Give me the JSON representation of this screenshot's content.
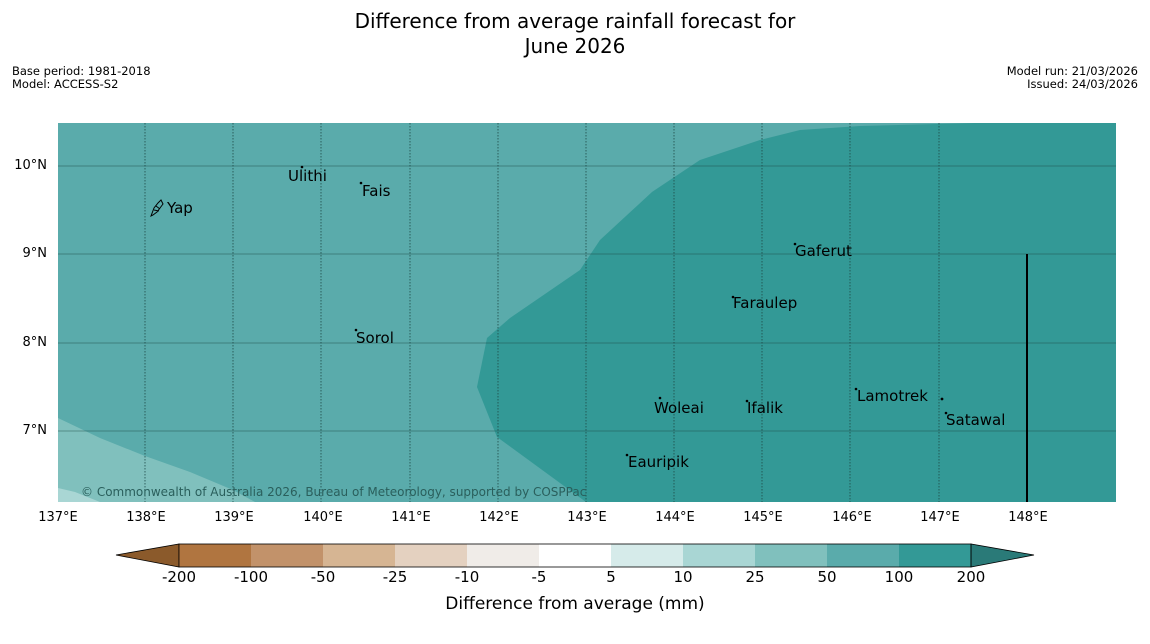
{
  "title_line1": "Difference from average rainfall forecast for",
  "title_line2": "June 2026",
  "meta_left": {
    "line1": "Base period: 1981-2018",
    "line2": "Model: ACCESS-S2"
  },
  "meta_right": {
    "line1": "Model run: 21/03/2026",
    "line2": "Issued: 24/03/2026"
  },
  "latitudes": [
    "10°N",
    "9°N",
    "8°N",
    "7°N"
  ],
  "longitudes": [
    "137°E",
    "138°E",
    "139°E",
    "140°E",
    "141°E",
    "142°E",
    "143°E",
    "144°E",
    "145°E",
    "146°E",
    "147°E",
    "148°E"
  ],
  "places": {
    "yap": "Yap",
    "ulithi": "Ulithi",
    "fais": "Fais",
    "gaferut": "Gaferut",
    "faraulep": "Faraulep",
    "sorol": "Sorol",
    "woleai": "Woleai",
    "ifalik": "Ifalik",
    "lamotrek": "Lamotrek",
    "satawal": "Satawal",
    "eauripik": "Eauripik"
  },
  "copyright": "© Commonwealth of Australia 2026, Bureau of Meteorology, supported by COSPPac",
  "colorbar": {
    "labels": [
      "-200",
      "-100",
      "-50",
      "-25",
      "-10",
      "-5",
      "5",
      "10",
      "25",
      "50",
      "100",
      "200"
    ],
    "colors": [
      "#8b5a2b",
      "#b07540",
      "#c2926a",
      "#d6b593",
      "#e4d1c0",
      "#f0ece8",
      "#ffffff",
      "#d6ebea",
      "#a9d6d4",
      "#80c0bd",
      "#5aabab",
      "#339996",
      "#2a7a78"
    ],
    "title": "Difference from average (mm)"
  }
}
